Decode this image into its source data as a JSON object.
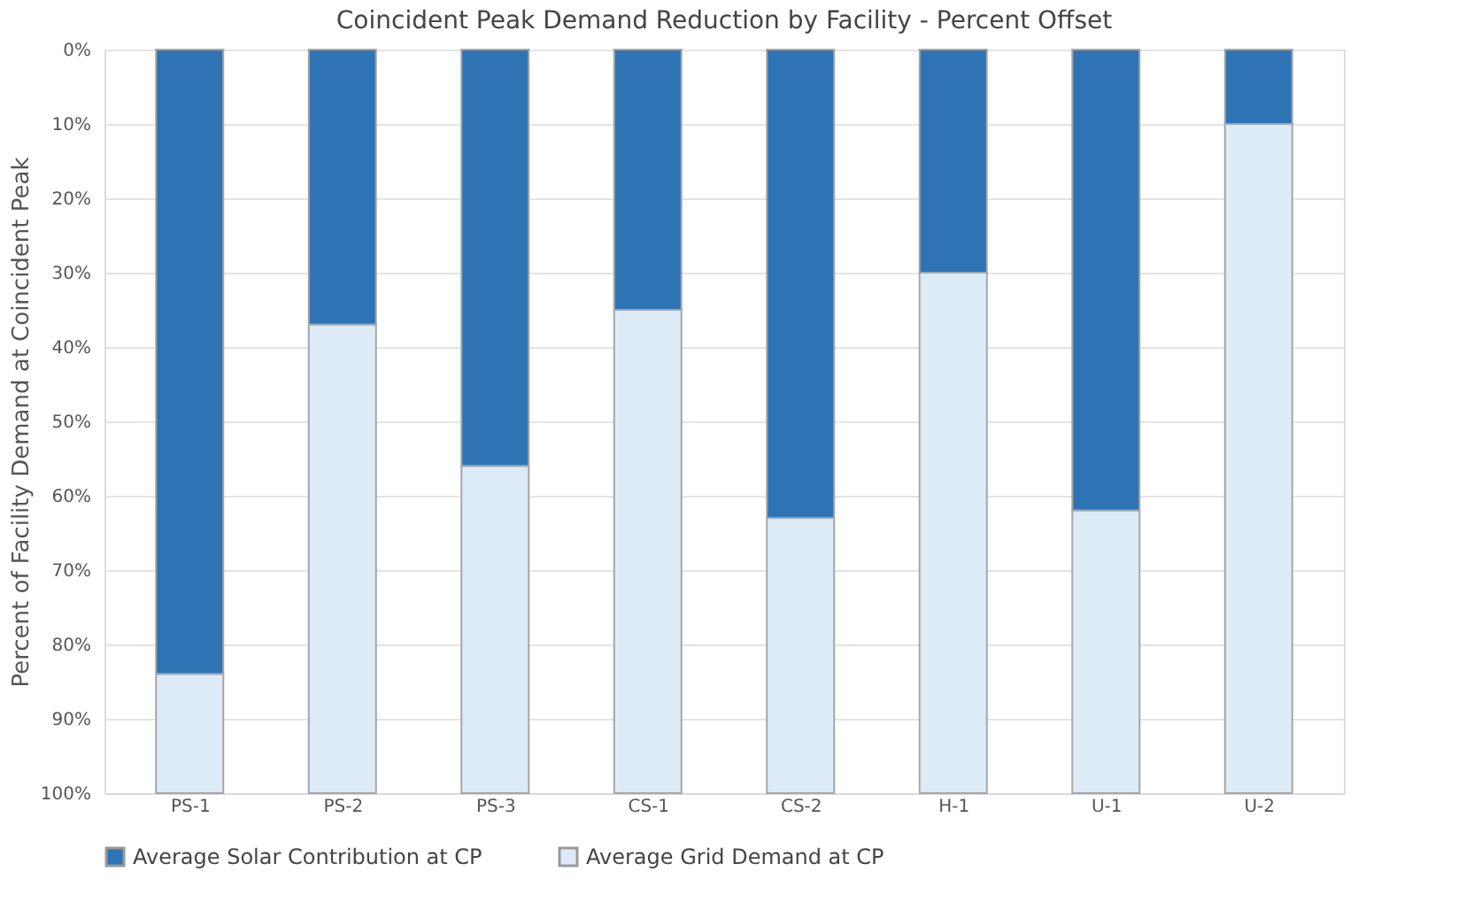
{
  "chart_data": {
    "type": "bar",
    "title": "Coincident Peak Demand Reduction by Facility - Percent Offset",
    "ylabel": "Percent of Facility Demand at Coincident Peak",
    "categories": [
      "PS-1",
      "PS-2",
      "PS-3",
      "CS-1",
      "CS-2",
      "H-1",
      "U-1",
      "U-2"
    ],
    "stacked": true,
    "series": [
      {
        "name": "Average Solar Contribution at CP",
        "color": "#2e74b5",
        "values": [
          84,
          37,
          56,
          35,
          63,
          30,
          62,
          10
        ]
      },
      {
        "name": "Average Grid Demand at CP",
        "color": "#ddebf7",
        "values": [
          16,
          63,
          44,
          65,
          37,
          70,
          38,
          90
        ]
      }
    ],
    "ylim": [
      100,
      0
    ],
    "yticks": [
      {
        "value": 0,
        "label": "0%"
      },
      {
        "value": 10,
        "label": "10%"
      },
      {
        "value": 20,
        "label": "20%"
      },
      {
        "value": 30,
        "label": "30%"
      },
      {
        "value": 40,
        "label": "40%"
      },
      {
        "value": 50,
        "label": "50%"
      },
      {
        "value": 60,
        "label": "60%"
      },
      {
        "value": 70,
        "label": "70%"
      },
      {
        "value": 80,
        "label": "80%"
      },
      {
        "value": 90,
        "label": "90%"
      },
      {
        "value": 100,
        "label": "100%"
      }
    ],
    "grid": "y",
    "legend": "bottom"
  }
}
